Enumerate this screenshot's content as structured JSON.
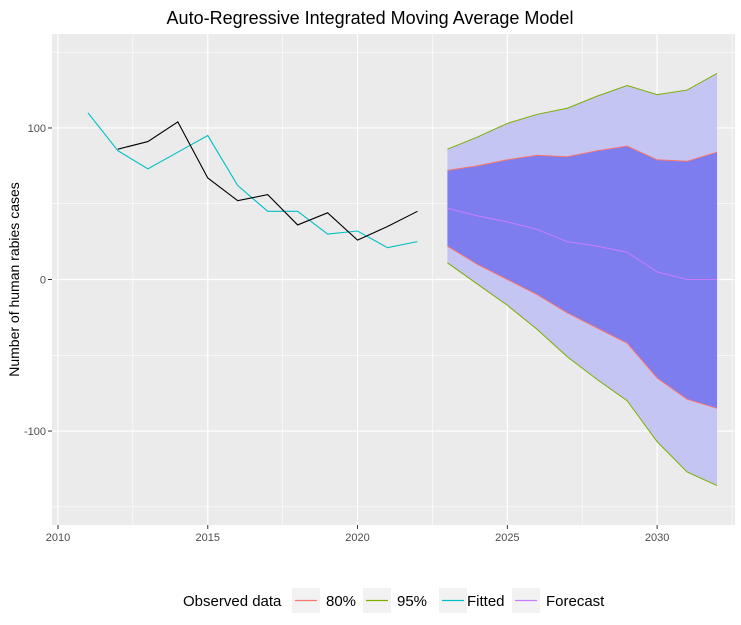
{
  "chart_data": {
    "type": "line",
    "title": "Auto-Regressive Integrated Moving Average Model",
    "xlabel": "",
    "ylabel": "Number of human rabies cases",
    "xlim": [
      2009.8,
      2032.6
    ],
    "ylim": [
      -162,
      162
    ],
    "x_ticks": [
      2010,
      2015,
      2020,
      2025,
      2030
    ],
    "y_ticks": [
      -100,
      0,
      100
    ],
    "x_tick_labels": [
      "2010",
      "2015",
      "2020",
      "2025",
      "2030"
    ],
    "y_tick_labels": [
      "-100",
      "0",
      "100"
    ],
    "observed": {
      "x": [
        2012,
        2013,
        2014,
        2015,
        2016,
        2017,
        2018,
        2019,
        2020,
        2021,
        2022
      ],
      "y": [
        86,
        91,
        104,
        67,
        52,
        56,
        36,
        44,
        26,
        35,
        45
      ],
      "color": "#000000"
    },
    "fitted": {
      "x": [
        2011,
        2012,
        2013,
        2014,
        2015,
        2016,
        2017,
        2018,
        2019,
        2020,
        2021,
        2022
      ],
      "y": [
        110,
        85,
        73,
        84,
        95,
        62,
        45,
        45,
        30,
        32,
        21,
        25
      ],
      "color": "#00bfc4"
    },
    "forecast": {
      "x": [
        2023,
        2024,
        2025,
        2026,
        2027,
        2028,
        2029,
        2030,
        2031,
        2032
      ],
      "mean": [
        47,
        42,
        38,
        33,
        25,
        22,
        18,
        5,
        0,
        0
      ],
      "lo80": [
        22,
        10,
        0,
        -10,
        -22,
        -32,
        -42,
        -65,
        -79,
        -85
      ],
      "hi80": [
        72,
        75,
        79,
        82,
        81,
        85,
        88,
        79,
        78,
        84
      ],
      "lo95": [
        11,
        -3,
        -17,
        -33,
        -51,
        -66,
        -80,
        -107,
        -127,
        -136
      ],
      "hi95": [
        86,
        94,
        103,
        109,
        113,
        121,
        128,
        122,
        125,
        136
      ],
      "color": "#c77cff"
    },
    "band_colors": {
      "fill95": "#c5c5f4",
      "fill80": "#7d7def",
      "line80": "#f8766d",
      "line95": "#7cae00"
    },
    "legend": {
      "title": "Observed data",
      "position": "bottom",
      "items": [
        {
          "label": "80%",
          "color": "#f8766d"
        },
        {
          "label": "95%",
          "color": "#7cae00"
        },
        {
          "label": "Fitted",
          "color": "#00bfc4"
        },
        {
          "label": "Forecast",
          "color": "#c77cff"
        }
      ]
    }
  }
}
